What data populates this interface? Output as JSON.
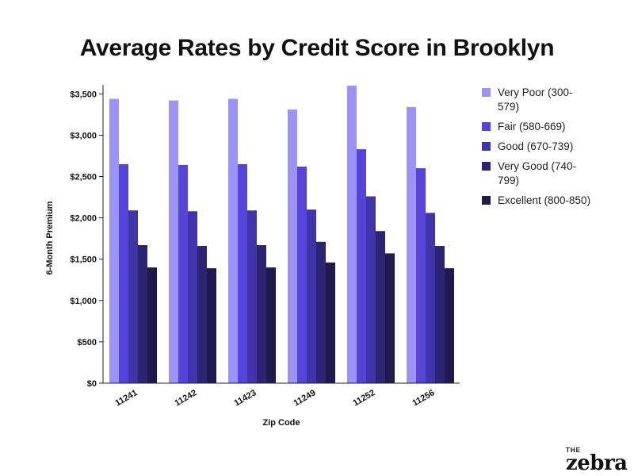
{
  "title": "Average Rates by Credit Score in Brooklyn",
  "chart_data": {
    "type": "bar",
    "title": "Average Rates by Credit Score in Brooklyn",
    "xlabel": "Zip Code",
    "ylabel": "6-Month Premium",
    "categories": [
      "11241",
      "11242",
      "11423",
      "11249",
      "11252",
      "11256"
    ],
    "y_ticks": [
      "$0",
      "$500",
      "$1,000",
      "$1,500",
      "$2,000",
      "$2,500",
      "$3,000",
      "$3,500"
    ],
    "ylim": [
      0,
      3600
    ],
    "grid": false,
    "legend_position": "right",
    "series": [
      {
        "name": "Very Poor (300-579)",
        "color": "#9B93F7",
        "values": [
          3440,
          3420,
          3440,
          3310,
          3600,
          3340
        ]
      },
      {
        "name": "Fair (580-669)",
        "color": "#5644D9",
        "values": [
          2650,
          2640,
          2650,
          2620,
          2830,
          2600
        ]
      },
      {
        "name": "Good (670-739)",
        "color": "#3F34A8",
        "values": [
          2090,
          2080,
          2090,
          2100,
          2260,
          2060
        ]
      },
      {
        "name": "Very Good (740-799)",
        "color": "#2C2472",
        "values": [
          1670,
          1660,
          1670,
          1710,
          1840,
          1660
        ]
      },
      {
        "name": "Excellent (800-850)",
        "color": "#1E1A4E",
        "values": [
          1400,
          1390,
          1400,
          1460,
          1570,
          1390
        ]
      }
    ]
  },
  "brand": {
    "top": "THE",
    "main": "zebra"
  }
}
